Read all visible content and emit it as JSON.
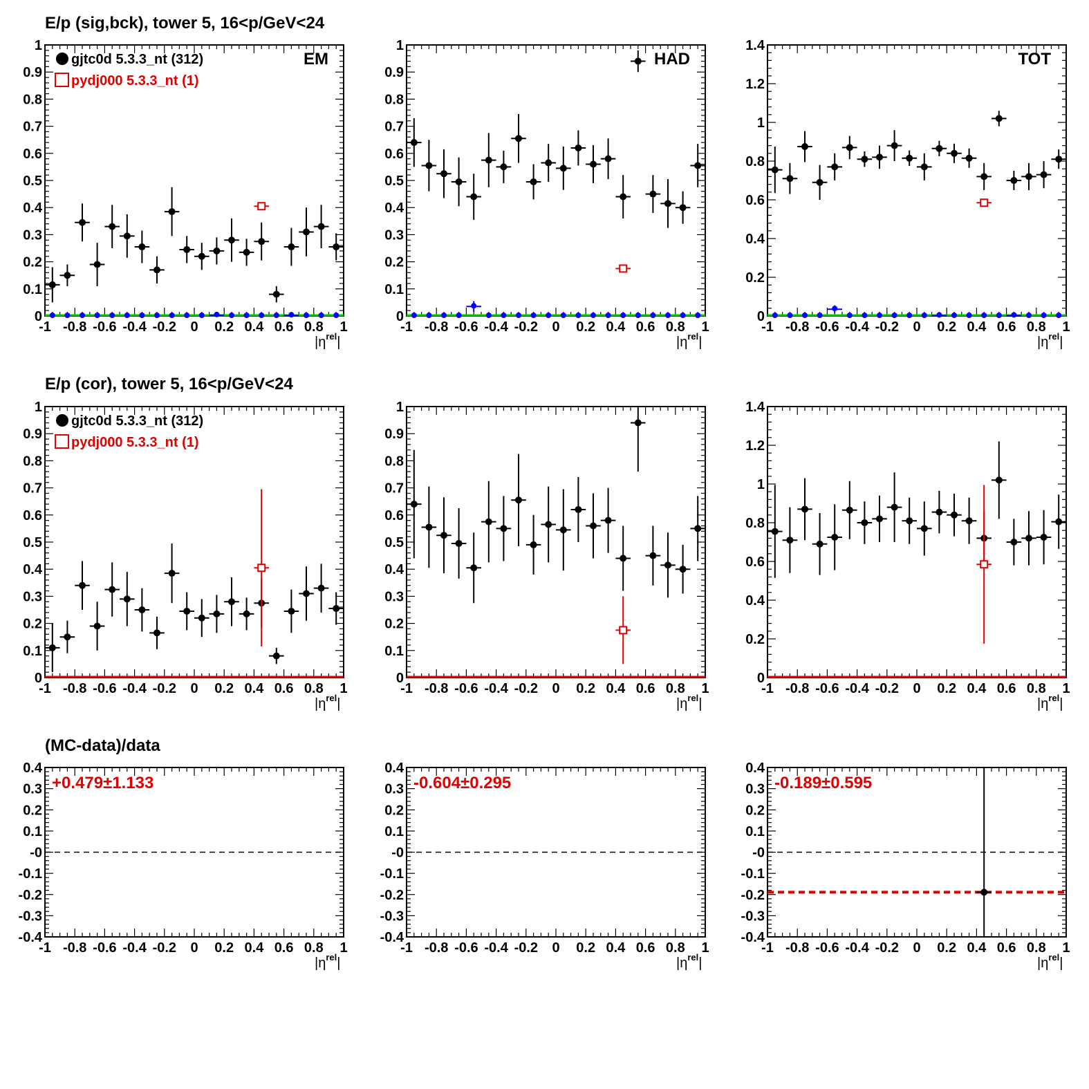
{
  "row_titles": [
    "E/p (sig,bck), tower 5, 16<p/GeV<24",
    "E/p (cor), tower 5, 16<p/GeV<24",
    "(MC-data)/data"
  ],
  "legend": {
    "data_label": "gjtc0d 5.3.3_nt (312)",
    "mc_label": "pydj000 5.3.3_nt (1)"
  },
  "x_axis_label": "|η^rel|",
  "colors": {
    "data": "#000000",
    "mc": "#e00000",
    "background": "#0000ff",
    "baseline_green": "#00cc00",
    "baseline_red": "#e00000"
  },
  "chart_data": [
    {
      "id": "sig-em",
      "row": 0,
      "col": 0,
      "type": "scatter",
      "tag": "EM",
      "xlim": [
        -1,
        1
      ],
      "ylim": [
        0,
        1
      ],
      "yticks": [
        "0",
        "0.1",
        "0.2",
        "0.3",
        "0.4",
        "0.5",
        "0.6",
        "0.7",
        "0.8",
        "0.9",
        "1"
      ],
      "legend": true,
      "baseline": "green",
      "series": [
        {
          "role": "data",
          "color": "#000000",
          "marker": "dot",
          "x": [
            -0.95,
            -0.85,
            -0.75,
            -0.65,
            -0.55,
            -0.45,
            -0.35,
            -0.25,
            -0.15,
            -0.05,
            0.05,
            0.15,
            0.25,
            0.35,
            0.45,
            0.55,
            0.65,
            0.75,
            0.85,
            0.95
          ],
          "y": [
            0.115,
            0.15,
            0.345,
            0.19,
            0.33,
            0.295,
            0.255,
            0.17,
            0.385,
            0.245,
            0.22,
            0.24,
            0.28,
            0.235,
            0.275,
            0.08,
            0.255,
            0.31,
            0.33,
            0.255
          ],
          "err": [
            0.065,
            0.04,
            0.07,
            0.08,
            0.08,
            0.08,
            0.06,
            0.05,
            0.09,
            0.05,
            0.05,
            0.05,
            0.08,
            0.05,
            0.07,
            0.03,
            0.07,
            0.09,
            0.08,
            0.05
          ]
        },
        {
          "role": "background",
          "color": "#0000ff",
          "marker": "dot-small",
          "x": [
            -0.95,
            -0.85,
            -0.75,
            -0.65,
            -0.55,
            -0.45,
            -0.35,
            -0.25,
            -0.15,
            -0.05,
            0.05,
            0.15,
            0.25,
            0.35,
            0.45,
            0.55,
            0.65,
            0.75,
            0.85,
            0.95
          ],
          "y": [
            0,
            0,
            0,
            0,
            0,
            0,
            0,
            0,
            0,
            0,
            0,
            0.003,
            0,
            0,
            0,
            0,
            0.002,
            0,
            0,
            0
          ],
          "err": [
            0,
            0,
            0,
            0,
            0,
            0,
            0,
            0,
            0,
            0,
            0,
            0.005,
            0,
            0,
            0,
            0,
            0.003,
            0,
            0,
            0
          ]
        },
        {
          "role": "mc",
          "color": "#e00000",
          "marker": "open-square",
          "x": [
            0.45
          ],
          "y": [
            0.405
          ],
          "err": [
            0
          ]
        }
      ]
    },
    {
      "id": "sig-had",
      "row": 0,
      "col": 1,
      "type": "scatter",
      "tag": "HAD",
      "xlim": [
        -1,
        1
      ],
      "ylim": [
        0,
        1
      ],
      "yticks": [
        "0",
        "0.1",
        "0.2",
        "0.3",
        "0.4",
        "0.5",
        "0.6",
        "0.7",
        "0.8",
        "0.9",
        "1"
      ],
      "legend": false,
      "baseline": "green",
      "series": [
        {
          "role": "data",
          "color": "#000000",
          "marker": "dot",
          "x": [
            -0.95,
            -0.85,
            -0.75,
            -0.65,
            -0.55,
            -0.45,
            -0.35,
            -0.25,
            -0.15,
            -0.05,
            0.05,
            0.15,
            0.25,
            0.35,
            0.45,
            0.55,
            0.65,
            0.75,
            0.85,
            0.95
          ],
          "y": [
            0.64,
            0.555,
            0.525,
            0.495,
            0.44,
            0.575,
            0.55,
            0.655,
            0.495,
            0.565,
            0.545,
            0.62,
            0.56,
            0.58,
            0.44,
            0.94,
            0.45,
            0.415,
            0.4,
            0.555
          ],
          "err": [
            0.09,
            0.095,
            0.09,
            0.09,
            0.085,
            0.1,
            0.06,
            0.09,
            0.065,
            0.07,
            0.08,
            0.065,
            0.07,
            0.075,
            0.08,
            0.04,
            0.07,
            0.09,
            0.06,
            0.08
          ]
        },
        {
          "role": "background",
          "color": "#0000ff",
          "marker": "dot-small",
          "x": [
            -0.95,
            -0.85,
            -0.75,
            -0.65,
            -0.55,
            -0.45,
            -0.35,
            -0.25,
            -0.15,
            -0.05,
            0.05,
            0.15,
            0.25,
            0.35,
            0.45,
            0.55,
            0.65,
            0.75,
            0.85,
            0.95
          ],
          "y": [
            0,
            0,
            0,
            0,
            0.035,
            0,
            0,
            0,
            0,
            0,
            0,
            0,
            0,
            0,
            0,
            0,
            0,
            0,
            0,
            0
          ],
          "err": [
            0,
            0,
            0,
            0,
            0.02,
            0,
            0,
            0,
            0,
            0,
            0,
            0,
            0,
            0,
            0,
            0,
            0,
            0,
            0,
            0
          ]
        },
        {
          "role": "mc",
          "color": "#e00000",
          "marker": "open-square",
          "x": [
            0.45
          ],
          "y": [
            0.175
          ],
          "err": [
            0
          ]
        }
      ]
    },
    {
      "id": "sig-tot",
      "row": 0,
      "col": 2,
      "type": "scatter",
      "tag": "TOT",
      "xlim": [
        -1,
        1
      ],
      "ylim": [
        0,
        1.4
      ],
      "yticks": [
        "0",
        "0.2",
        "0.4",
        "0.6",
        "0.8",
        "1",
        "1.2",
        "1.4"
      ],
      "legend": false,
      "baseline": "green",
      "series": [
        {
          "role": "data",
          "color": "#000000",
          "marker": "dot",
          "x": [
            -0.95,
            -0.85,
            -0.75,
            -0.65,
            -0.55,
            -0.45,
            -0.35,
            -0.25,
            -0.15,
            -0.05,
            0.05,
            0.15,
            0.25,
            0.35,
            0.45,
            0.55,
            0.65,
            0.75,
            0.85,
            0.95
          ],
          "y": [
            0.755,
            0.71,
            0.875,
            0.69,
            0.77,
            0.87,
            0.81,
            0.82,
            0.88,
            0.815,
            0.77,
            0.865,
            0.84,
            0.815,
            0.72,
            1.02,
            0.7,
            0.72,
            0.73,
            0.81
          ],
          "err": [
            0.12,
            0.08,
            0.08,
            0.09,
            0.07,
            0.06,
            0.04,
            0.06,
            0.08,
            0.04,
            0.07,
            0.04,
            0.05,
            0.05,
            0.07,
            0.04,
            0.05,
            0.07,
            0.07,
            0.05
          ]
        },
        {
          "role": "background",
          "color": "#0000ff",
          "marker": "dot-small",
          "x": [
            -0.95,
            -0.85,
            -0.75,
            -0.65,
            -0.55,
            -0.45,
            -0.35,
            -0.25,
            -0.15,
            -0.05,
            0.05,
            0.15,
            0.25,
            0.35,
            0.45,
            0.55,
            0.65,
            0.75,
            0.85,
            0.95
          ],
          "y": [
            0,
            0,
            0,
            0,
            0.035,
            0,
            0,
            0,
            0,
            0,
            0,
            0.002,
            0,
            0,
            0,
            0,
            0.002,
            0,
            0,
            0
          ],
          "err": [
            0,
            0,
            0,
            0,
            0.02,
            0,
            0,
            0,
            0,
            0,
            0,
            0.004,
            0,
            0,
            0,
            0,
            0.003,
            0,
            0,
            0
          ]
        },
        {
          "role": "mc",
          "color": "#e00000",
          "marker": "open-square",
          "x": [
            0.45
          ],
          "y": [
            0.585
          ],
          "err": [
            0
          ]
        }
      ]
    },
    {
      "id": "cor-em",
      "row": 1,
      "col": 0,
      "type": "scatter",
      "tag": "",
      "xlim": [
        -1,
        1
      ],
      "ylim": [
        0,
        1
      ],
      "yticks": [
        "0",
        "0.1",
        "0.2",
        "0.3",
        "0.4",
        "0.5",
        "0.6",
        "0.7",
        "0.8",
        "0.9",
        "1"
      ],
      "legend": true,
      "baseline": "red",
      "series": [
        {
          "role": "data",
          "color": "#000000",
          "marker": "dot",
          "x": [
            -0.95,
            -0.85,
            -0.75,
            -0.65,
            -0.55,
            -0.45,
            -0.35,
            -0.25,
            -0.15,
            -0.05,
            0.05,
            0.15,
            0.25,
            0.35,
            0.45,
            0.55,
            0.65,
            0.75,
            0.85,
            0.95
          ],
          "y": [
            0.11,
            0.15,
            0.34,
            0.19,
            0.325,
            0.29,
            0.25,
            0.165,
            0.385,
            0.245,
            0.22,
            0.235,
            0.28,
            0.235,
            0.275,
            0.08,
            0.245,
            0.31,
            0.33,
            0.255
          ],
          "err": [
            0.09,
            0.06,
            0.09,
            0.09,
            0.1,
            0.1,
            0.08,
            0.06,
            0.11,
            0.07,
            0.07,
            0.07,
            0.09,
            0.06,
            0.09,
            0.03,
            0.08,
            0.1,
            0.09,
            0.06
          ]
        },
        {
          "role": "mc",
          "color": "#e00000",
          "marker": "open-square",
          "x": [
            0.45
          ],
          "y": [
            0.405
          ],
          "err": [
            0.29
          ]
        }
      ]
    },
    {
      "id": "cor-had",
      "row": 1,
      "col": 1,
      "type": "scatter",
      "tag": "",
      "xlim": [
        -1,
        1
      ],
      "ylim": [
        0,
        1
      ],
      "yticks": [
        "0",
        "0.1",
        "0.2",
        "0.3",
        "0.4",
        "0.5",
        "0.6",
        "0.7",
        "0.8",
        "0.9",
        "1"
      ],
      "legend": false,
      "baseline": "red",
      "series": [
        {
          "role": "data",
          "color": "#000000",
          "marker": "dot",
          "x": [
            -0.95,
            -0.85,
            -0.75,
            -0.65,
            -0.55,
            -0.45,
            -0.35,
            -0.25,
            -0.15,
            -0.05,
            0.05,
            0.15,
            0.25,
            0.35,
            0.45,
            0.55,
            0.65,
            0.75,
            0.85,
            0.95
          ],
          "y": [
            0.64,
            0.555,
            0.525,
            0.495,
            0.405,
            0.575,
            0.55,
            0.655,
            0.49,
            0.565,
            0.545,
            0.62,
            0.56,
            0.58,
            0.44,
            0.94,
            0.45,
            0.415,
            0.4,
            0.55
          ],
          "err": [
            0.2,
            0.15,
            0.14,
            0.13,
            0.13,
            0.15,
            0.12,
            0.17,
            0.11,
            0.14,
            0.15,
            0.12,
            0.12,
            0.12,
            0.12,
            0.18,
            0.11,
            0.12,
            0.09,
            0.12
          ]
        },
        {
          "role": "mc",
          "color": "#e00000",
          "marker": "open-square",
          "x": [
            0.45
          ],
          "y": [
            0.175
          ],
          "err": [
            0.125
          ]
        }
      ]
    },
    {
      "id": "cor-tot",
      "row": 1,
      "col": 2,
      "type": "scatter",
      "tag": "",
      "xlim": [
        -1,
        1
      ],
      "ylim": [
        0,
        1.4
      ],
      "yticks": [
        "0",
        "0.2",
        "0.4",
        "0.6",
        "0.8",
        "1",
        "1.2",
        "1.4"
      ],
      "legend": false,
      "baseline": "red",
      "series": [
        {
          "role": "data",
          "color": "#000000",
          "marker": "dot",
          "x": [
            -0.95,
            -0.85,
            -0.75,
            -0.65,
            -0.55,
            -0.45,
            -0.35,
            -0.25,
            -0.15,
            -0.05,
            0.05,
            0.15,
            0.25,
            0.35,
            0.45,
            0.55,
            0.65,
            0.75,
            0.85,
            0.95
          ],
          "y": [
            0.755,
            0.71,
            0.87,
            0.69,
            0.725,
            0.865,
            0.8,
            0.82,
            0.88,
            0.81,
            0.77,
            0.855,
            0.84,
            0.81,
            0.72,
            1.02,
            0.7,
            0.72,
            0.725,
            0.805
          ],
          "err": [
            0.24,
            0.17,
            0.16,
            0.16,
            0.17,
            0.15,
            0.11,
            0.12,
            0.18,
            0.12,
            0.14,
            0.11,
            0.11,
            0.12,
            0.14,
            0.2,
            0.12,
            0.14,
            0.14,
            0.14
          ]
        },
        {
          "role": "mc",
          "color": "#e00000",
          "marker": "open-square",
          "x": [
            0.45
          ],
          "y": [
            0.585
          ],
          "err": [
            0.41
          ]
        }
      ]
    },
    {
      "id": "ratio-em",
      "row": 2,
      "col": 0,
      "type": "scatter",
      "tag": "",
      "xlim": [
        -1,
        1
      ],
      "ylim": [
        -0.4,
        0.4
      ],
      "yticks": [
        "-0.4",
        "-0.3",
        "-0.2",
        "-0.1",
        "-0",
        "0.1",
        "0.2",
        "0.3",
        "0.4"
      ],
      "legend": false,
      "baseline": "none",
      "annotation": "+0.479±1.133",
      "fit": null,
      "series": []
    },
    {
      "id": "ratio-had",
      "row": 2,
      "col": 1,
      "type": "scatter",
      "tag": "",
      "xlim": [
        -1,
        1
      ],
      "ylim": [
        -0.4,
        0.4
      ],
      "yticks": [
        "-0.4",
        "-0.3",
        "-0.2",
        "-0.1",
        "-0",
        "0.1",
        "0.2",
        "0.3",
        "0.4"
      ],
      "legend": false,
      "baseline": "none",
      "annotation": "-0.604±0.295",
      "fit": null,
      "series": []
    },
    {
      "id": "ratio-tot",
      "row": 2,
      "col": 2,
      "type": "scatter",
      "tag": "",
      "xlim": [
        -1,
        1
      ],
      "ylim": [
        -0.4,
        0.4
      ],
      "yticks": [
        "-0.4",
        "-0.3",
        "-0.2",
        "-0.1",
        "-0",
        "0.1",
        "0.2",
        "0.3",
        "0.4"
      ],
      "legend": false,
      "baseline": "none",
      "annotation": "-0.189±0.595",
      "fit": -0.189,
      "series": [
        {
          "role": "data",
          "color": "#000000",
          "marker": "dot",
          "x": [
            0.45
          ],
          "y": [
            -0.189
          ],
          "err": [
            0.595
          ]
        }
      ]
    }
  ]
}
